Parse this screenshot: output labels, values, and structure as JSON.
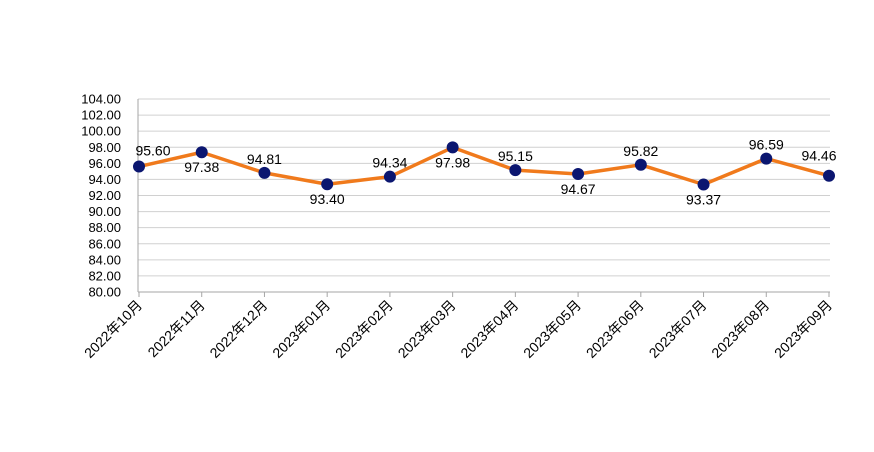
{
  "chart_data": {
    "type": "line",
    "categories": [
      "2022年10月",
      "2022年11月",
      "2022年12月",
      "2023年01月",
      "2023年02月",
      "2023年03月",
      "2023年04月",
      "2023年05月",
      "2023年06月",
      "2023年07月",
      "2023年08月",
      "2023年09月"
    ],
    "series": [
      {
        "values": [
          95.6,
          97.38,
          94.81,
          93.4,
          94.34,
          97.98,
          95.15,
          94.67,
          95.82,
          93.37,
          96.59,
          94.46
        ],
        "labels": [
          "95.60",
          "97.38",
          "94.81",
          "93.40",
          "94.34",
          "97.98",
          "95.15",
          "94.67",
          "95.82",
          "93.37",
          "96.59",
          "94.46"
        ],
        "label_position": [
          "above",
          "below",
          "above",
          "below",
          "above",
          "below",
          "above",
          "below",
          "above",
          "below",
          "above",
          "above"
        ]
      }
    ],
    "ylim": [
      80,
      104
    ],
    "yticks": [
      "80.00",
      "82.00",
      "84.00",
      "86.00",
      "88.00",
      "90.00",
      "92.00",
      "94.00",
      "96.00",
      "98.00",
      "100.00",
      "102.00",
      "104.00"
    ],
    "ytick_step": 2,
    "grid": true,
    "colors": {
      "line": "#F07A1C",
      "marker": "#0B1670",
      "grid": "#D0D0D0",
      "axis": "#A6A6A6"
    },
    "title": "",
    "xlabel": "",
    "ylabel": ""
  }
}
